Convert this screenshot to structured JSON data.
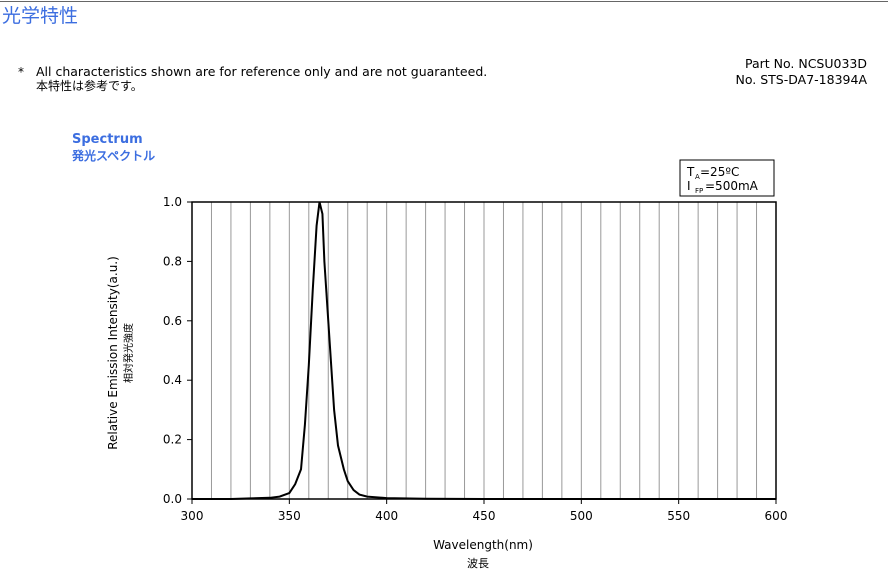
{
  "header": {
    "title": "光学特性",
    "note_mark": "*",
    "note_en": "All characteristics shown are for reference only and are not guaranteed.",
    "note_ja": "本特性は参考です。",
    "part_no": "Part No. NCSU033D",
    "doc_no": "No. STS-DA7-18394A"
  },
  "chart_data": {
    "type": "line",
    "title": "Spectrum",
    "subtitle": "発光スペクトル",
    "x_label": "Wavelength(nm)",
    "x_label_ja": "波長",
    "y_label": "Relative Emission Intensity(a.u.)",
    "y_label_ja": "相対発光強度",
    "conditions": [
      {
        "symbol": "T",
        "sub": "A",
        "value": "=25ºC"
      },
      {
        "symbol": "I",
        "sub": "FP",
        "value": "=500mA"
      }
    ],
    "x": [
      300,
      320,
      330,
      340,
      345,
      350,
      353,
      356,
      358,
      360,
      362,
      364,
      365.5,
      367,
      368,
      370,
      371,
      373,
      375,
      378,
      380,
      383,
      386,
      390,
      400,
      420,
      450,
      600
    ],
    "series": [
      {
        "name": "Spectrum",
        "color": "#000000",
        "values": [
          0,
          0,
          0.002,
          0.004,
          0.008,
          0.02,
          0.05,
          0.1,
          0.25,
          0.45,
          0.7,
          0.92,
          1.0,
          0.96,
          0.8,
          0.6,
          0.5,
          0.3,
          0.18,
          0.1,
          0.06,
          0.03,
          0.015,
          0.008,
          0.003,
          0.001,
          0,
          0
        ]
      }
    ],
    "xlim": [
      300,
      600
    ],
    "ylim": [
      0,
      1
    ],
    "xticks": [
      300,
      350,
      400,
      450,
      500,
      550,
      600
    ],
    "xgrid": [
      310,
      320,
      330,
      340,
      350,
      360,
      370,
      380,
      390,
      400,
      410,
      420,
      430,
      440,
      450,
      460,
      470,
      480,
      490,
      500,
      510,
      520,
      530,
      540,
      550,
      560,
      570,
      580,
      590
    ],
    "yticks": [
      {
        "value": 0,
        "label": "0.0"
      },
      {
        "value": 0.2,
        "label": "0.2"
      },
      {
        "value": 0.4,
        "label": "0.4"
      },
      {
        "value": 0.6,
        "label": "0.6"
      },
      {
        "value": 0.8,
        "label": "0.8"
      },
      {
        "value": 1,
        "label": "1.0"
      }
    ],
    "grid": true
  }
}
